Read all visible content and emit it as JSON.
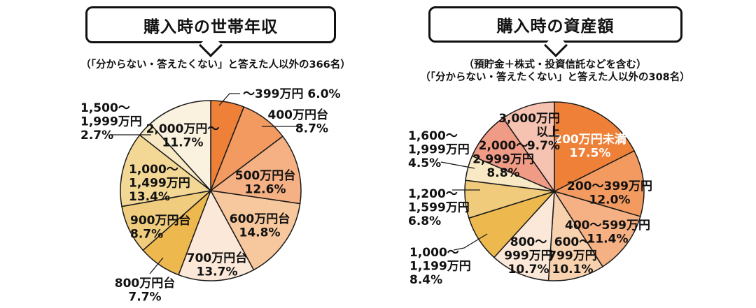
{
  "chart_data": [
    {
      "type": "pie",
      "title": "購入時の世帯年収",
      "subtitle_lines": [
        "（「分からない・答えたくない」と答えた人以外の366名）"
      ],
      "unit": "%",
      "start_angle": "12時方向",
      "direction": "clockwise",
      "outline_color": "#1a1a1a",
      "slices": [
        {
          "label": "～399万円",
          "value": 6.0,
          "color": "#EE8038",
          "label_lines": [
            "～399万円 6.0%"
          ]
        },
        {
          "label": "400万円台",
          "value": 8.7,
          "color": "#F29A5F",
          "label_lines": [
            "400万円台",
            "8.7%"
          ]
        },
        {
          "label": "500万円台",
          "value": 12.6,
          "color": "#F5B184",
          "label_lines": [
            "500万円台",
            "12.6%"
          ]
        },
        {
          "label": "600万円台",
          "value": 14.8,
          "color": "#F7C79D",
          "label_lines": [
            "600万円台",
            "14.8%"
          ]
        },
        {
          "label": "700万円台",
          "value": 13.7,
          "color": "#FBE8D8",
          "label_lines": [
            "700万円台",
            "13.7%"
          ]
        },
        {
          "label": "800万円台",
          "value": 7.7,
          "color": "#EDB84D",
          "label_lines": [
            "800万円台",
            "7.7%"
          ]
        },
        {
          "label": "900万円台",
          "value": 8.7,
          "color": "#F0CC7E",
          "label_lines": [
            "900万円台",
            "8.7%"
          ]
        },
        {
          "label": "1,000～1,499万円",
          "value": 13.4,
          "color": "#F2D795",
          "label_lines": [
            "1,000～",
            "1,499万円",
            "13.4%"
          ]
        },
        {
          "label": "1,500～1,999万円",
          "value": 2.7,
          "color": "#F8E9C4",
          "label_lines": [
            "1,500～",
            "1,999万円",
            "2.7%"
          ]
        },
        {
          "label": "2,000万円～",
          "value": 11.7,
          "color": "#FAF1DE",
          "label_lines": [
            "2,000万円～",
            "11.7%"
          ]
        }
      ]
    },
    {
      "type": "pie",
      "title": "購入時の資産額",
      "subtitle_lines": [
        "（預貯金＋株式・投資信託などを含む）",
        "（「分からない・答えたくない」と答えた人以外の308名）"
      ],
      "unit": "%",
      "start_angle": "12時方向",
      "direction": "clockwise",
      "outline_color": "#1a1a1a",
      "slices": [
        {
          "label": "200万円未満",
          "value": 17.5,
          "color": "#EE8038",
          "label_lines": [
            "200万円未満",
            "17.5%"
          ],
          "label_color": "#ffffff"
        },
        {
          "label": "200～399万円",
          "value": 12.0,
          "color": "#F29A5F",
          "label_lines": [
            "200～399万円",
            "12.0%"
          ]
        },
        {
          "label": "400～599万円",
          "value": 11.4,
          "color": "#F5B184",
          "label_lines": [
            "400～599万円",
            "11.4%"
          ]
        },
        {
          "label": "600～799万円",
          "value": 10.1,
          "color": "#F8D2AE",
          "label_lines": [
            "600～",
            "799万円",
            "10.1%"
          ]
        },
        {
          "label": "800～999万円",
          "value": 10.7,
          "color": "#FBE8D8",
          "label_lines": [
            "800～",
            "999万円",
            "10.7%"
          ]
        },
        {
          "label": "1,000～1,199万円",
          "value": 8.4,
          "color": "#EDB84D",
          "label_lines": [
            "1,000～",
            "1,199万円",
            "8.4%"
          ]
        },
        {
          "label": "1,200～1,599万円",
          "value": 6.8,
          "color": "#EFCB7B",
          "label_lines": [
            "1,200～",
            "1,599万円",
            "6.8%"
          ]
        },
        {
          "label": "1,600～1,999万円",
          "value": 4.5,
          "color": "#F8E9C4",
          "label_lines": [
            "1,600～",
            "1,999万円",
            "4.5%"
          ]
        },
        {
          "label": "2,000～2,999万円",
          "value": 8.8,
          "color": "#F09B85",
          "label_lines": [
            "2,000～",
            "2,999万円",
            "8.8%"
          ]
        },
        {
          "label": "3,000万円以上",
          "value": 9.7,
          "color": "#F6C2B1",
          "label_lines": [
            "3,000万円",
            "以上",
            "9.7%"
          ]
        }
      ]
    }
  ]
}
